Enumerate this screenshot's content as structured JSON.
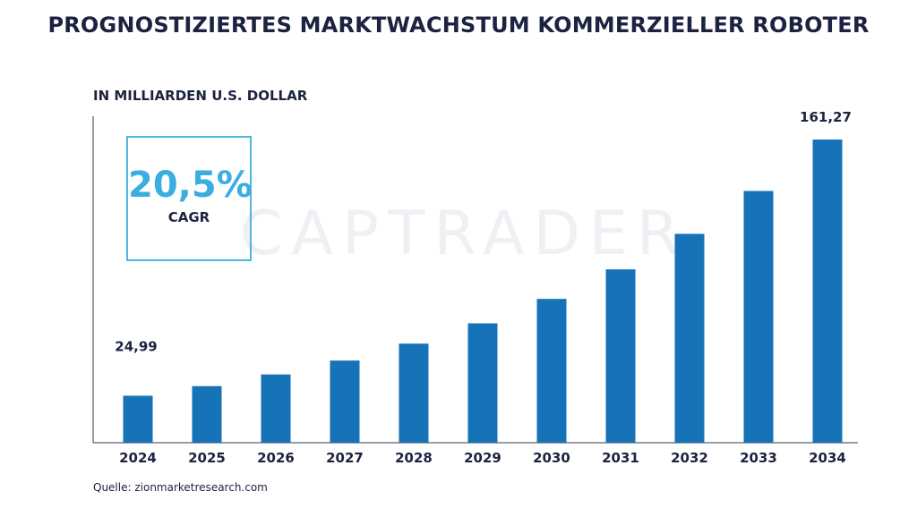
{
  "title": "PROGNOSTIZIERTES MARKTWACHSTUM KOMMERZIELLER ROBOTER",
  "unit_label": "IN MILLIARDEN U.S. DOLLAR",
  "source": "Quelle: zionmarketresearch.com",
  "watermark": "CAPTRADER",
  "cagr": {
    "value": "20,5%",
    "label": "CAGR"
  },
  "colors": {
    "bar": "#1673b8",
    "accent": "#3aaee0",
    "text": "#1c2340"
  },
  "chart_data": {
    "type": "bar",
    "categories": [
      "2024",
      "2025",
      "2026",
      "2027",
      "2028",
      "2029",
      "2030",
      "2031",
      "2032",
      "2033",
      "2034"
    ],
    "values": [
      24.99,
      30.1,
      36.3,
      43.7,
      52.7,
      63.5,
      76.5,
      92.2,
      111.1,
      133.9,
      161.27
    ],
    "data_labels": {
      "0": "24,99",
      "10": "161,27"
    },
    "ylim": [
      0,
      170
    ],
    "grid": false,
    "legend": "none"
  }
}
